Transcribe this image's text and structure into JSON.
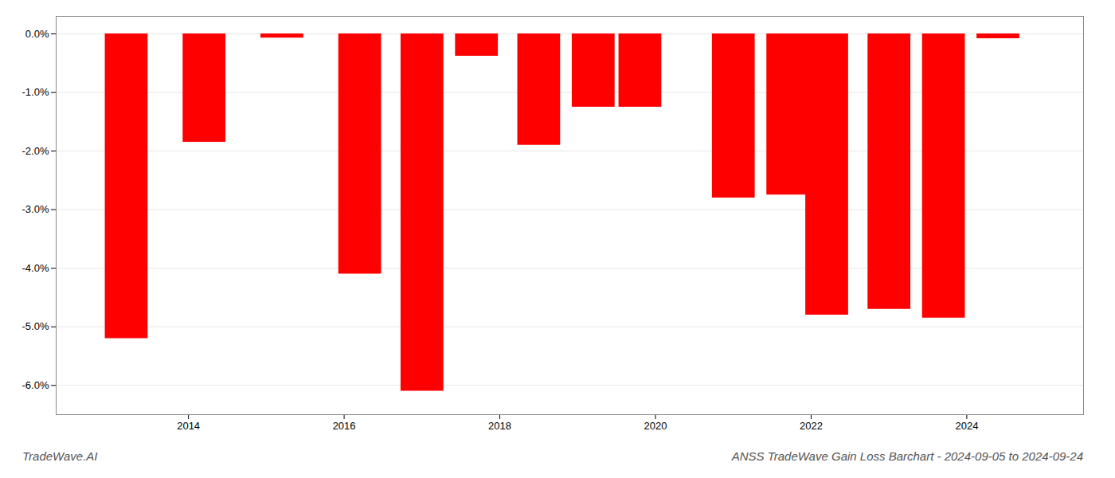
{
  "chart_data": {
    "type": "bar",
    "title": "ANSS TradeWave Gain Loss Barchart - 2024-09-05 to 2024-09-24",
    "annotations": [
      "TradeWave.AI"
    ],
    "x": [
      2013.2,
      2014.2,
      2015.2,
      2016.2,
      2017.0,
      2017.7,
      2018.5,
      2019.2,
      2019.8,
      2020.5,
      2021.0,
      2021.7,
      2022.2,
      2023.0,
      2023.7,
      2024.4
    ],
    "values": [
      -5.2,
      -1.85,
      -0.07,
      -4.1,
      -6.1,
      -0.38,
      -1.9,
      -1.25,
      -1.25,
      -0.0,
      -2.8,
      -2.75,
      -4.8,
      -4.7,
      -4.85,
      -0.08
    ],
    "color": "#ff0000",
    "xlim": [
      2012.3,
      2025.5
    ],
    "xticks": [
      2014,
      2016,
      2018,
      2020,
      2022,
      2024
    ],
    "ylim": [
      -6.5,
      0.3
    ],
    "yticks": [
      {
        "value": 0.0,
        "label": "0.0%"
      },
      {
        "value": -1.0,
        "label": "-1.0%"
      },
      {
        "value": -2.0,
        "label": "-2.0%"
      },
      {
        "value": -3.0,
        "label": "-3.0%"
      },
      {
        "value": -4.0,
        "label": "-4.0%"
      },
      {
        "value": -5.0,
        "label": "-5.0%"
      },
      {
        "value": -6.0,
        "label": "-6.0%"
      }
    ],
    "grid": true
  }
}
